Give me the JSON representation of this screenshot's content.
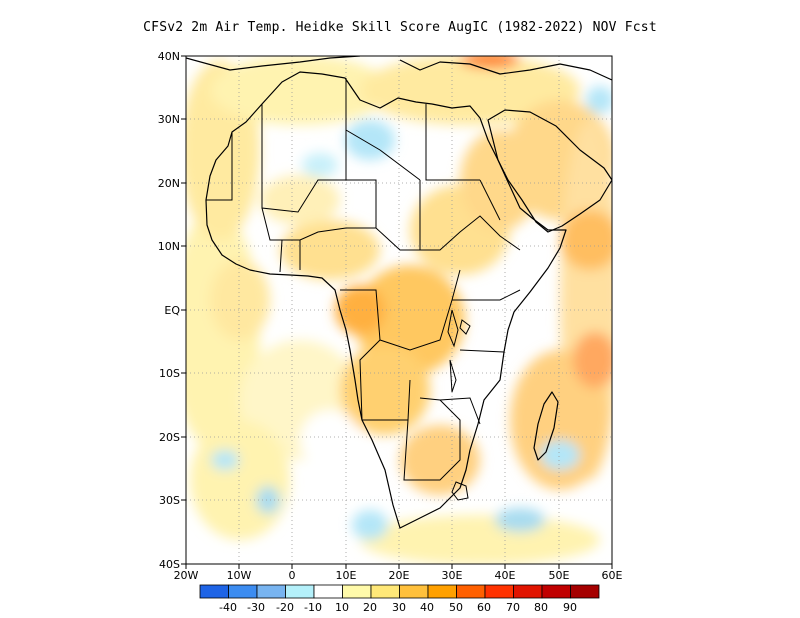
{
  "title": "CFSv2  2m Air Temp. Heidke Skill Score AugIC (1982-2022) NOV Fcst",
  "map": {
    "lat_labels": [
      "40N",
      "30N",
      "20N",
      "10N",
      "EQ",
      "10S",
      "20S",
      "30S",
      "40S"
    ],
    "lon_labels": [
      "20W",
      "10W",
      "0",
      "10E",
      "20E",
      "30E",
      "40E",
      "50E",
      "60E"
    ],
    "lon_range": [
      -20,
      60
    ],
    "lat_range": [
      -40,
      40
    ],
    "grid": "dotted",
    "land_outline_color": "#000000"
  },
  "colorbar": {
    "colors": [
      "#1e64e6",
      "#3c8cf0",
      "#78b4f0",
      "#b4f0fa",
      "#ffffff",
      "#fffaaa",
      "#ffe878",
      "#ffc03c",
      "#ffa000",
      "#ff6000",
      "#ff3200",
      "#e11400",
      "#c00000",
      "#a50000"
    ],
    "labels": [
      "-40",
      "-30",
      "-20",
      "-10",
      "10",
      "20",
      "30",
      "40",
      "50",
      "60",
      "70",
      "80",
      "90"
    ]
  },
  "field_colors": {
    "light_yellow": "#fffaaa",
    "yellow": "#ffe878",
    "orange": "#ffc03c",
    "dark_orange": "#ffa000",
    "light_blue": "#b4f0fa",
    "mid_blue": "#78b4f0"
  }
}
